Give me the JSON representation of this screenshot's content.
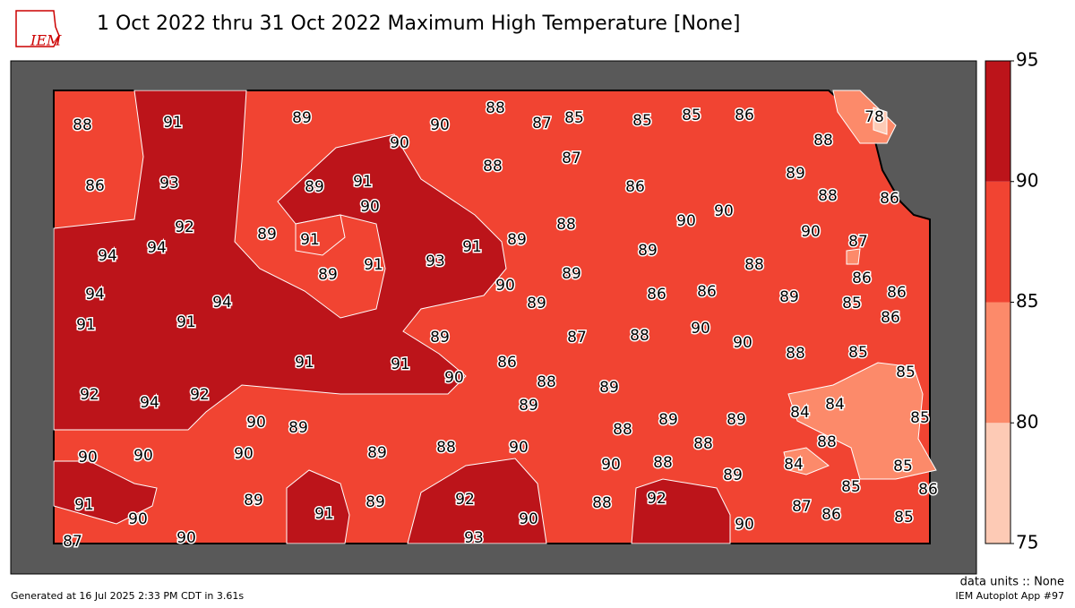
{
  "header": {
    "title": "1 Oct 2022 thru 31 Oct 2022 Maximum High Temperature [None]",
    "logo": "IEM"
  },
  "map": {
    "station_values": [
      88,
      91,
      89,
      90,
      88,
      87,
      85,
      85,
      85,
      86,
      78,
      90,
      88,
      86,
      93,
      89,
      91,
      88,
      87,
      86,
      89,
      88,
      86,
      90,
      92,
      89,
      91,
      89,
      88,
      90,
      90,
      90,
      87,
      94,
      94,
      91,
      93,
      91,
      89,
      88,
      86,
      89,
      90,
      89,
      94,
      94,
      89,
      86,
      86,
      89,
      85,
      86,
      91,
      91,
      86,
      89,
      87,
      88,
      90,
      90,
      91,
      91,
      86,
      88,
      85,
      85,
      90,
      88,
      89,
      92,
      94,
      92,
      89,
      84,
      84,
      85,
      90,
      89,
      89,
      89,
      88,
      88,
      88,
      89,
      88,
      90,
      90,
      90,
      90,
      90,
      88,
      89,
      84,
      85,
      85,
      86,
      91,
      90,
      89,
      91,
      89,
      92,
      90,
      88,
      92,
      90,
      87,
      86,
      85,
      87,
      90,
      93
    ]
  },
  "colorbar": {
    "ticks": [
      75,
      80,
      85,
      90,
      95
    ],
    "colors": [
      "#fdcab5",
      "#fc8a6a",
      "#f14432",
      "#bc141a"
    ]
  },
  "footer": {
    "units": "data units :: None",
    "generated": "Generated at 16 Jul 2025 2:33 PM CDT in 3.61s",
    "app": "IEM Autoplot App #97"
  }
}
